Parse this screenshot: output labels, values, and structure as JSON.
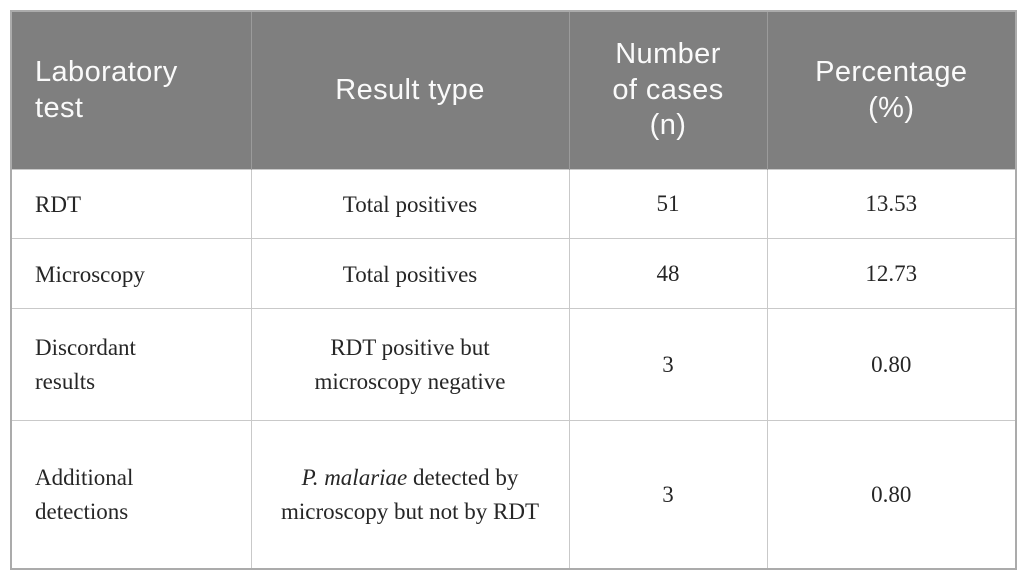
{
  "table": {
    "columns": [
      {
        "label": "Laboratory test"
      },
      {
        "label": "Result type"
      },
      {
        "label": "Number of cases (n)"
      },
      {
        "label": "Percentage (%)"
      }
    ],
    "rows": [
      {
        "lab_test": "RDT",
        "result_type": [
          {
            "text": "Total positives",
            "italic": false
          }
        ],
        "cases": "51",
        "percentage": "13.53"
      },
      {
        "lab_test": "Microscopy",
        "result_type": [
          {
            "text": "Total positives",
            "italic": false
          }
        ],
        "cases": "48",
        "percentage": "12.73"
      },
      {
        "lab_test": "Discordant results",
        "result_type": [
          {
            "text": "RDT positive but microscopy negative",
            "italic": false
          }
        ],
        "cases": "3",
        "percentage": "0.80"
      },
      {
        "lab_test": "Additional detections",
        "result_type": [
          {
            "text": "P. malariae",
            "italic": true
          },
          {
            "text": " detected by microscopy but not by RDT",
            "italic": false
          }
        ],
        "cases": "3",
        "percentage": "0.80"
      }
    ]
  },
  "colors": {
    "header_bg": "#7f7f7f",
    "header_text": "#fafafa",
    "header_separator": "#9b9b9b",
    "body_text": "#262626",
    "grid_line": "#c9c9c9",
    "outer_border": "#ababab"
  }
}
